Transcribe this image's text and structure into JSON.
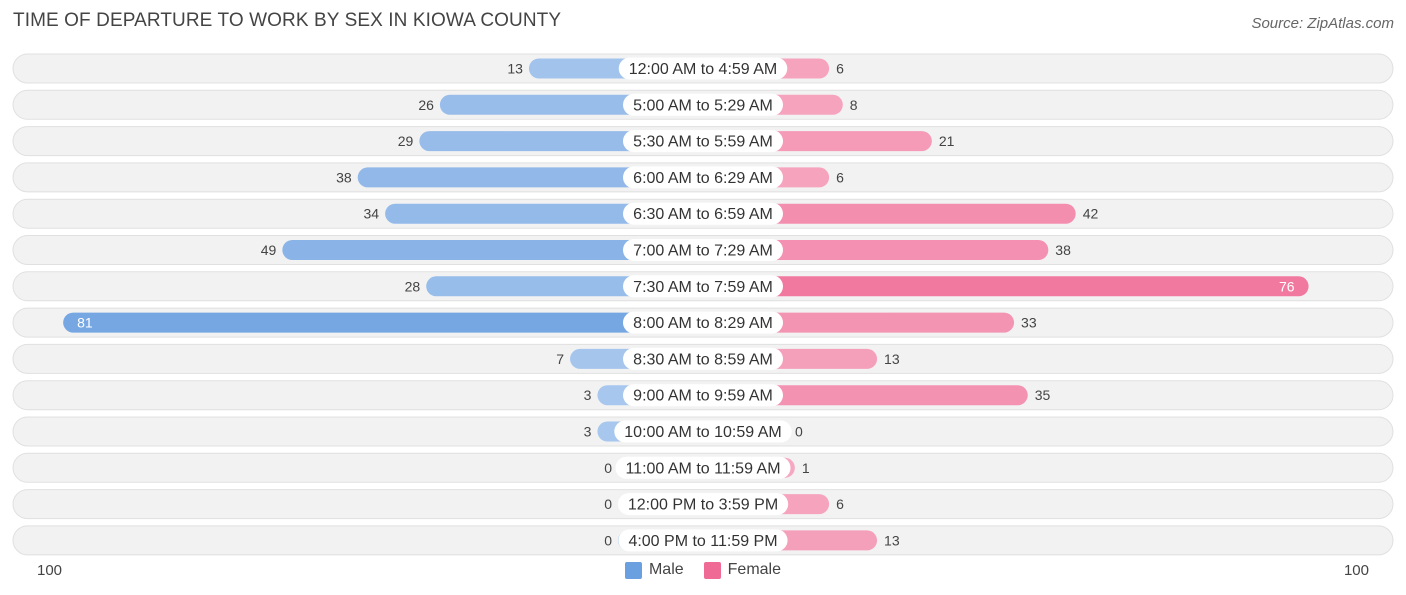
{
  "header": {
    "title": "TIME OF DEPARTURE TO WORK BY SEX IN KIOWA COUNTY",
    "source": "Source: ZipAtlas.com"
  },
  "colors": {
    "male": "#6a9fe0",
    "male_light": "#a9c8ee",
    "female": "#f06a96",
    "female_light": "#f6a8c1",
    "row_bg": "#f2f2f2",
    "row_border": "#e0e0e0"
  },
  "chart_data": {
    "type": "bar",
    "orientation": "horizontal-diverging",
    "categories": [
      "12:00 AM to 4:59 AM",
      "5:00 AM to 5:29 AM",
      "5:30 AM to 5:59 AM",
      "6:00 AM to 6:29 AM",
      "6:30 AM to 6:59 AM",
      "7:00 AM to 7:29 AM",
      "7:30 AM to 7:59 AM",
      "8:00 AM to 8:29 AM",
      "8:30 AM to 8:59 AM",
      "9:00 AM to 9:59 AM",
      "10:00 AM to 10:59 AM",
      "11:00 AM to 11:59 AM",
      "12:00 PM to 3:59 PM",
      "4:00 PM to 11:59 PM"
    ],
    "series": [
      {
        "name": "Male",
        "values": [
          13,
          26,
          29,
          38,
          34,
          49,
          28,
          81,
          7,
          3,
          3,
          0,
          0,
          0
        ]
      },
      {
        "name": "Female",
        "values": [
          6,
          8,
          21,
          6,
          42,
          38,
          76,
          33,
          13,
          35,
          0,
          1,
          6,
          13
        ]
      }
    ],
    "axis": {
      "min_label": "100",
      "max_label": "100",
      "max": 100
    },
    "legend": [
      "Male",
      "Female"
    ],
    "legend_position": "bottom-center"
  }
}
